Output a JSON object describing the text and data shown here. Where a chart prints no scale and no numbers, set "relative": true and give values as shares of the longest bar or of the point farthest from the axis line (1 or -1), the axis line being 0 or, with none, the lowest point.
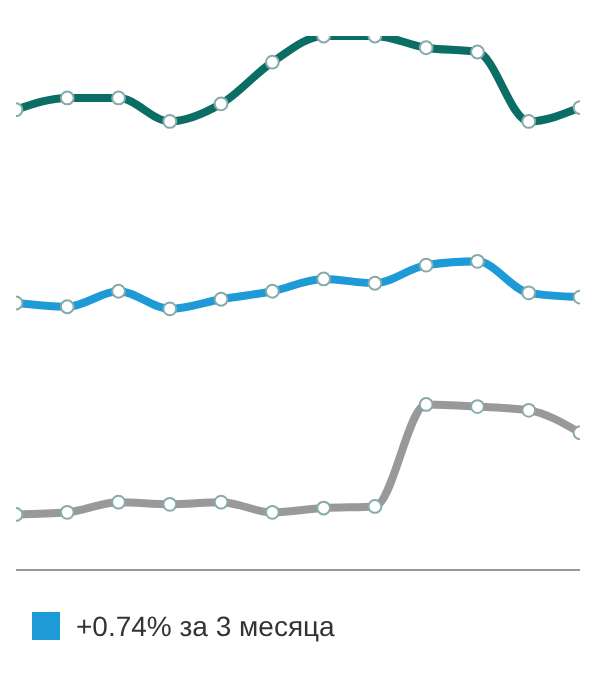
{
  "chart_data": {
    "type": "line",
    "relative": true,
    "categories": [
      null,
      null,
      null,
      null,
      null,
      null,
      null,
      null,
      null,
      null,
      null,
      null
    ],
    "series": [
      {
        "color": "#0b6e64",
        "values": [
          0.862,
          0.884,
          0.884,
          0.84,
          0.873,
          0.951,
          1,
          1,
          0.978,
          0.97,
          0.84,
          0.866
        ]
      },
      {
        "name": "+0.74% за 3 месяца",
        "color": "#1e9ad6",
        "values": [
          0.5,
          0.493,
          0.522,
          0.489,
          0.507,
          0.522,
          0.545,
          0.537,
          0.571,
          0.578,
          0.519,
          0.511
        ]
      },
      {
        "color": "#999999",
        "values": [
          0.104,
          0.108,
          0.127,
          0.123,
          0.127,
          0.108,
          0.116,
          0.119,
          0.31,
          0.306,
          0.299,
          0.257
        ]
      }
    ],
    "marker": "circle",
    "line_style": "solid",
    "legend": "bottom"
  }
}
